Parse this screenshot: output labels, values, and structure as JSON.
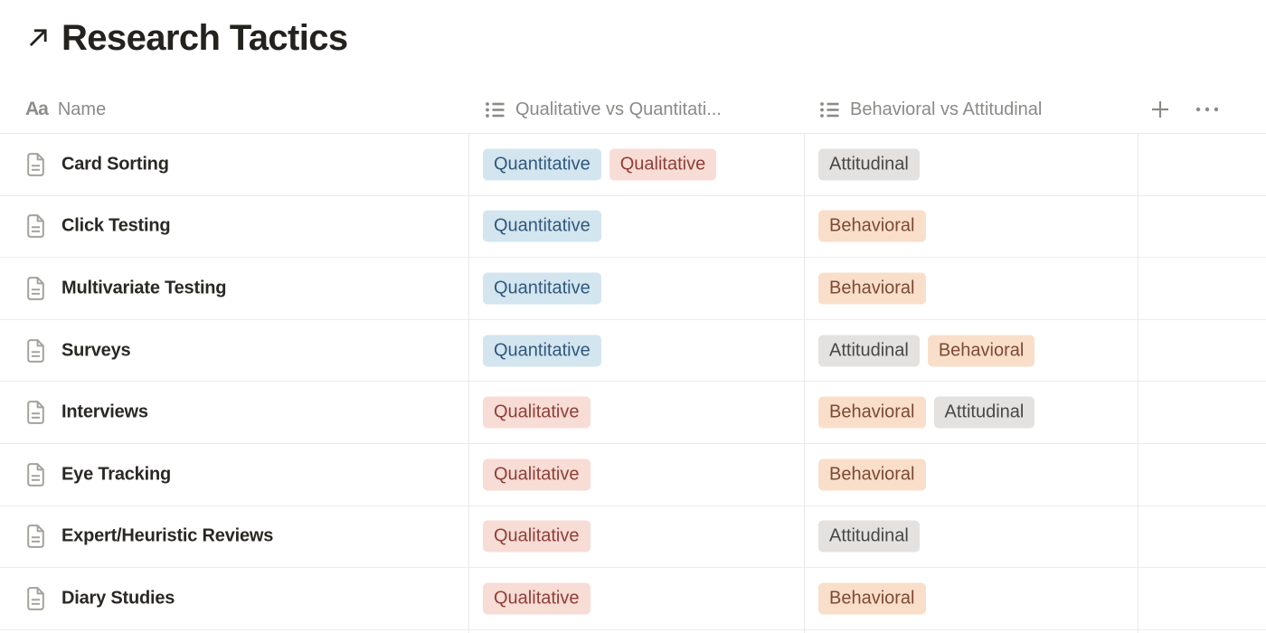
{
  "page": {
    "title": "Research Tactics"
  },
  "table": {
    "columns": [
      {
        "label": "Name",
        "type": "title"
      },
      {
        "label": "Qualitative vs Quantitati...",
        "type": "multi-select"
      },
      {
        "label": "Behavioral vs Attitudinal",
        "type": "multi-select"
      }
    ],
    "tag_colors": {
      "blue": {
        "bg": "#d3e5ef",
        "text": "#30587c"
      },
      "red": {
        "bg": "#f8dcd6",
        "text": "#8e4037"
      },
      "gray": {
        "bg": "#e3e2e0",
        "text": "#494744"
      },
      "orange": {
        "bg": "#f9dfc9",
        "text": "#7d4935"
      }
    },
    "rows": [
      {
        "name": "Card Sorting",
        "qual_quant": [
          {
            "label": "Quantitative",
            "color": "blue"
          },
          {
            "label": "Qualitative",
            "color": "red"
          }
        ],
        "behav_att": [
          {
            "label": "Attitudinal",
            "color": "gray"
          }
        ]
      },
      {
        "name": "Click Testing",
        "qual_quant": [
          {
            "label": "Quantitative",
            "color": "blue"
          }
        ],
        "behav_att": [
          {
            "label": "Behavioral",
            "color": "orange"
          }
        ]
      },
      {
        "name": "Multivariate Testing",
        "qual_quant": [
          {
            "label": "Quantitative",
            "color": "blue"
          }
        ],
        "behav_att": [
          {
            "label": "Behavioral",
            "color": "orange"
          }
        ]
      },
      {
        "name": "Surveys",
        "qual_quant": [
          {
            "label": "Quantitative",
            "color": "blue"
          }
        ],
        "behav_att": [
          {
            "label": "Attitudinal",
            "color": "gray"
          },
          {
            "label": "Behavioral",
            "color": "orange"
          }
        ]
      },
      {
        "name": "Interviews",
        "qual_quant": [
          {
            "label": "Qualitative",
            "color": "red"
          }
        ],
        "behav_att": [
          {
            "label": "Behavioral",
            "color": "orange"
          },
          {
            "label": "Attitudinal",
            "color": "gray"
          }
        ]
      },
      {
        "name": "Eye Tracking",
        "qual_quant": [
          {
            "label": "Qualitative",
            "color": "red"
          }
        ],
        "behav_att": [
          {
            "label": "Behavioral",
            "color": "orange"
          }
        ]
      },
      {
        "name": "Expert/Heuristic Reviews",
        "qual_quant": [
          {
            "label": "Qualitative",
            "color": "red"
          }
        ],
        "behav_att": [
          {
            "label": "Attitudinal",
            "color": "gray"
          }
        ]
      },
      {
        "name": "Diary Studies",
        "qual_quant": [
          {
            "label": "Qualitative",
            "color": "red"
          }
        ],
        "behav_att": [
          {
            "label": "Behavioral",
            "color": "orange"
          }
        ]
      }
    ]
  }
}
